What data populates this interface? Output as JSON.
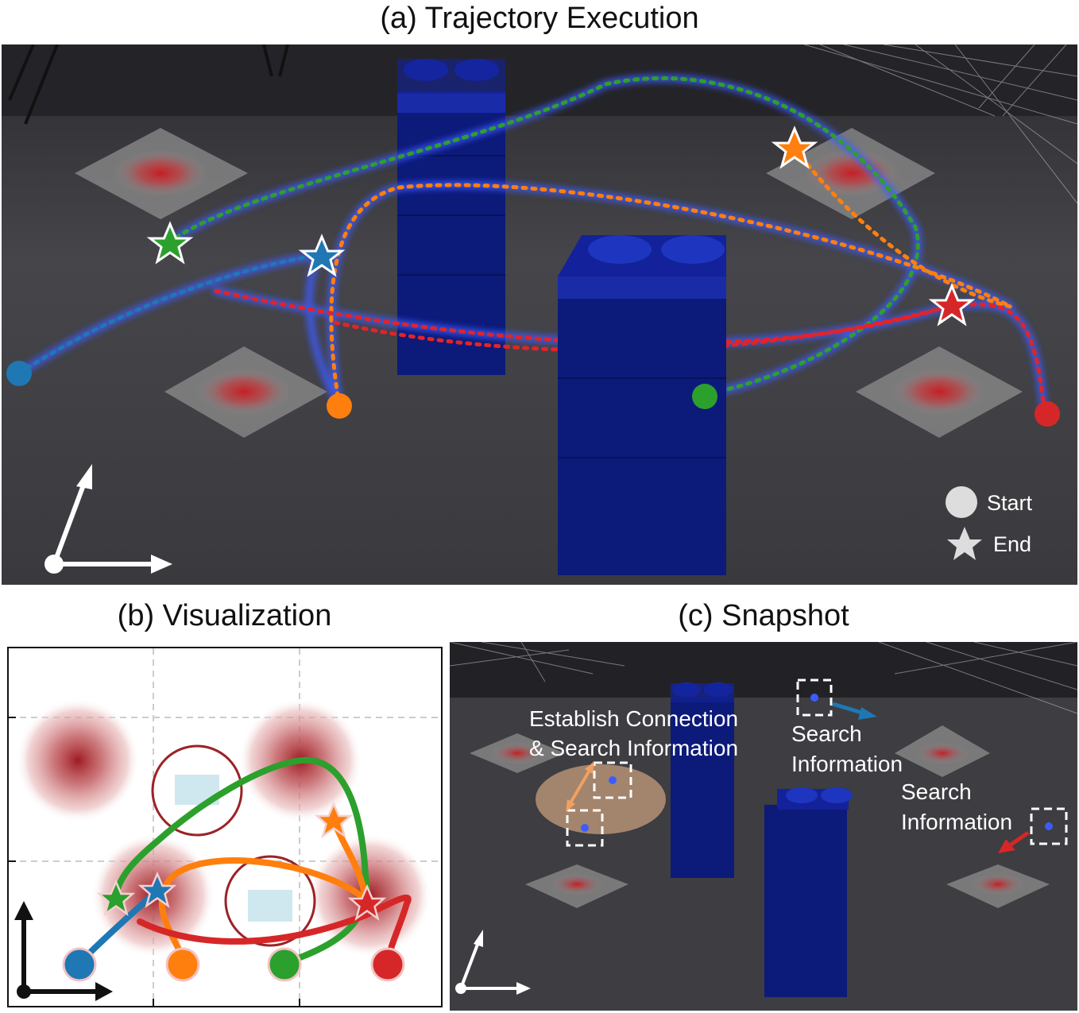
{
  "panel_a": {
    "title": "(a) Trajectory Execution",
    "legend": {
      "start": "Start",
      "end": "End"
    }
  },
  "panel_b": {
    "title": "(b) Visualization"
  },
  "panel_c": {
    "title": "(c) Snapshot",
    "annotations": {
      "establish_line1": "Establish Connection",
      "establish_line2": "& Search Information",
      "search1_line1": "Search",
      "search1_line2": "Information",
      "search2_line1": "Search",
      "search2_line2": "Information"
    }
  },
  "colors": {
    "blue": "#1f77b4",
    "orange": "#ff7f0e",
    "green": "#2ca02c",
    "red": "#d62728",
    "tower": "#0c1a7a",
    "floor": "#3f3f44"
  }
}
